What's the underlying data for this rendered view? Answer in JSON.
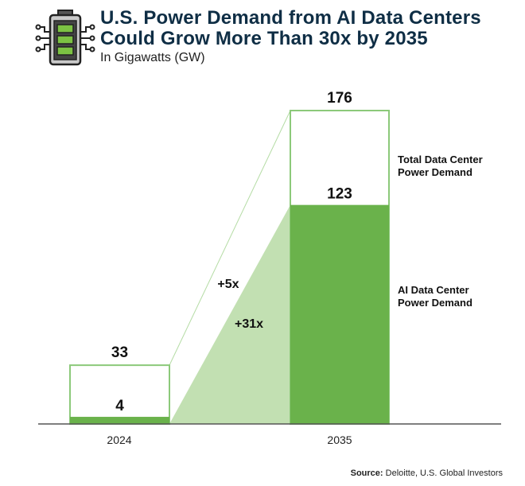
{
  "header": {
    "title_line1": "U.S. Power Demand from AI Data Centers",
    "title_line2": "Could Grow More Than 30x by 2035",
    "subtitle": "In Gigawatts (GW)",
    "icon": "battery-circuit-icon"
  },
  "source": {
    "label": "Source:",
    "text": " Deloitte, U.S. Global Investors"
  },
  "colors": {
    "total_outline": "#8cc97a",
    "ai_fill": "#6ab24b",
    "growth_fill": "#c2e0b2",
    "title": "#0f2e45"
  },
  "chart_data": {
    "type": "bar",
    "categories": [
      "2024",
      "2035"
    ],
    "series": [
      {
        "name": "Total Data Center Power Demand",
        "values": [
          33,
          176
        ]
      },
      {
        "name": "AI Data Center Power Demand",
        "values": [
          4,
          123
        ]
      }
    ],
    "annotations": [
      "+5x",
      "+31x"
    ],
    "legend_labels": {
      "total": [
        "Total Data Center",
        "Power Demand"
      ],
      "ai": [
        "AI Data Center",
        "Power Demand"
      ]
    },
    "ylim": [
      0,
      176
    ],
    "grid": false,
    "legend": "right"
  }
}
